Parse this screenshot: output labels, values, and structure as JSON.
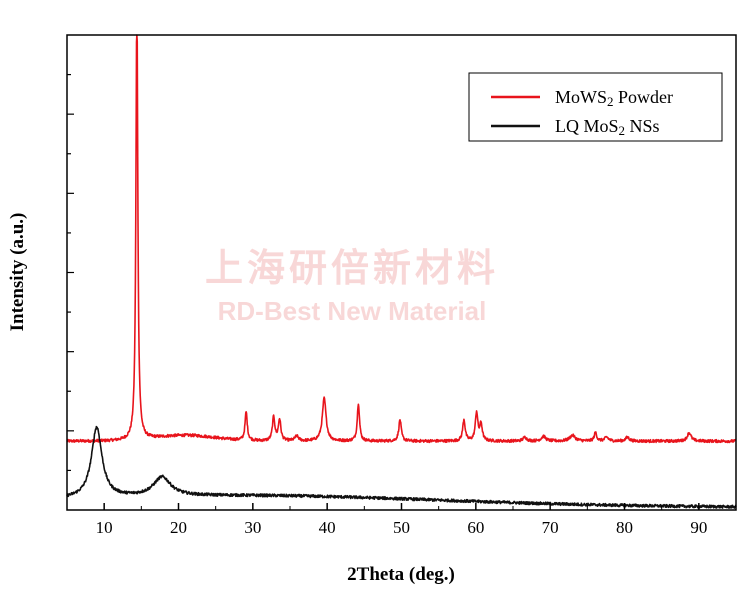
{
  "chart_data": {
    "type": "line",
    "xlabel": "2Theta (deg.)",
    "ylabel": "Intensity (a.u.)",
    "xlim": [
      5,
      95
    ],
    "x_ticks": [
      10,
      20,
      30,
      40,
      50,
      60,
      70,
      80,
      90
    ],
    "y_ticks_labeled": false,
    "legend_position": "top-right",
    "watermark": {
      "line1": "上海研倍新材料",
      "line2": "RD-Best New Material"
    },
    "series": [
      {
        "name": "MoWS2 Powder",
        "legend_main": "MoWS",
        "legend_sub": "2",
        "legend_rest": " Powder",
        "color": "#e8141c",
        "baseline": 0.145,
        "noise": 0.003,
        "peaks": [
          {
            "pos": 14.4,
            "height": 0.93,
            "width": 0.15
          },
          {
            "pos": 29.1,
            "height": 0.06,
            "width": 0.18
          },
          {
            "pos": 32.8,
            "height": 0.05,
            "width": 0.2
          },
          {
            "pos": 33.6,
            "height": 0.045,
            "width": 0.2
          },
          {
            "pos": 35.9,
            "height": 0.01,
            "width": 0.3
          },
          {
            "pos": 39.6,
            "height": 0.09,
            "width": 0.3
          },
          {
            "pos": 44.2,
            "height": 0.08,
            "width": 0.18
          },
          {
            "pos": 49.8,
            "height": 0.045,
            "width": 0.2
          },
          {
            "pos": 58.4,
            "height": 0.045,
            "width": 0.2
          },
          {
            "pos": 60.1,
            "height": 0.06,
            "width": 0.2
          },
          {
            "pos": 60.7,
            "height": 0.035,
            "width": 0.2
          },
          {
            "pos": 66.6,
            "height": 0.008,
            "width": 0.3
          },
          {
            "pos": 69.1,
            "height": 0.01,
            "width": 0.35
          },
          {
            "pos": 73.0,
            "height": 0.012,
            "width": 0.45
          },
          {
            "pos": 76.1,
            "height": 0.018,
            "width": 0.2
          },
          {
            "pos": 77.6,
            "height": 0.008,
            "width": 0.3
          },
          {
            "pos": 80.4,
            "height": 0.008,
            "width": 0.3
          },
          {
            "pos": 88.7,
            "height": 0.018,
            "width": 0.3
          }
        ],
        "humps": [
          {
            "pos": 21.0,
            "height": 0.012,
            "width": 4.0
          }
        ]
      },
      {
        "name": "LQ MoS2 NSs",
        "legend_main": "LQ MoS",
        "legend_sub": "2",
        "legend_rest": " NSs",
        "color": "#111111",
        "baseline": 0.012,
        "noise": 0.003,
        "peaks": [
          {
            "pos": 9.0,
            "height": 0.148,
            "width": 0.85
          },
          {
            "pos": 17.8,
            "height": 0.04,
            "width": 1.4
          }
        ],
        "humps": [
          {
            "pos": 30.0,
            "height": 0.02,
            "width": 25.0
          }
        ]
      }
    ]
  }
}
